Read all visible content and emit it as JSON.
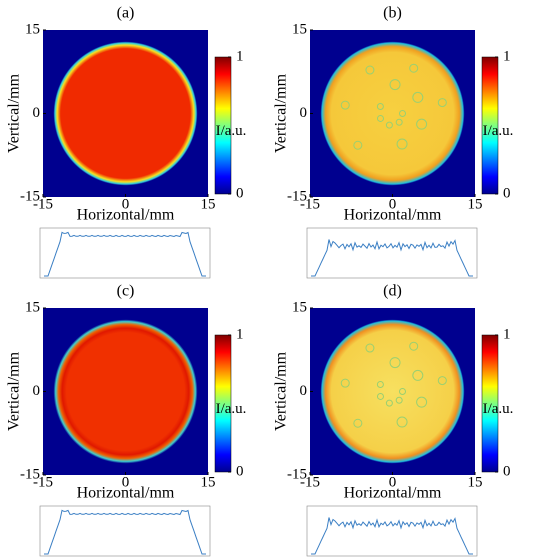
{
  "chart_data": [
    {
      "type": "heatmap",
      "title": "(a)",
      "xlabel": "Horizontal/mm",
      "ylabel": "Vertical/mm",
      "colorbar_label": "I/a.u.",
      "xlim": [
        -15,
        15
      ],
      "ylim": [
        -15,
        15
      ],
      "xticks": [
        -15,
        0,
        15
      ],
      "yticks": [
        -15,
        0,
        15
      ],
      "clim": [
        0,
        1
      ],
      "cticks": [
        0,
        1
      ]
    },
    {
      "type": "heatmap",
      "title": "(b)",
      "xlabel": "Horizontal/mm",
      "ylabel": "Vertical/mm",
      "colorbar_label": "I/a.u.",
      "xlim": [
        -15,
        15
      ],
      "ylim": [
        -15,
        15
      ],
      "xticks": [
        -15,
        0,
        15
      ],
      "yticks": [
        -15,
        0,
        15
      ],
      "clim": [
        0,
        1
      ],
      "cticks": [
        0,
        1
      ]
    },
    {
      "type": "heatmap",
      "title": "(c)",
      "xlabel": "Horizontal/mm",
      "ylabel": "Vertical/mm",
      "colorbar_label": "I/a.u.",
      "xlim": [
        -15,
        15
      ],
      "ylim": [
        -15,
        15
      ],
      "xticks": [
        -15,
        0,
        15
      ],
      "yticks": [
        -15,
        0,
        15
      ],
      "clim": [
        0,
        1
      ],
      "cticks": [
        0,
        1
      ]
    },
    {
      "type": "heatmap",
      "title": "(d)",
      "xlabel": "Horizontal/mm",
      "ylabel": "Vertical/mm",
      "colorbar_label": "I/a.u.",
      "xlim": [
        -15,
        15
      ],
      "ylim": [
        -15,
        15
      ],
      "xticks": [
        -15,
        0,
        15
      ],
      "yticks": [
        -15,
        0,
        15
      ],
      "clim": [
        0,
        1
      ],
      "cticks": [
        0,
        1
      ]
    }
  ]
}
